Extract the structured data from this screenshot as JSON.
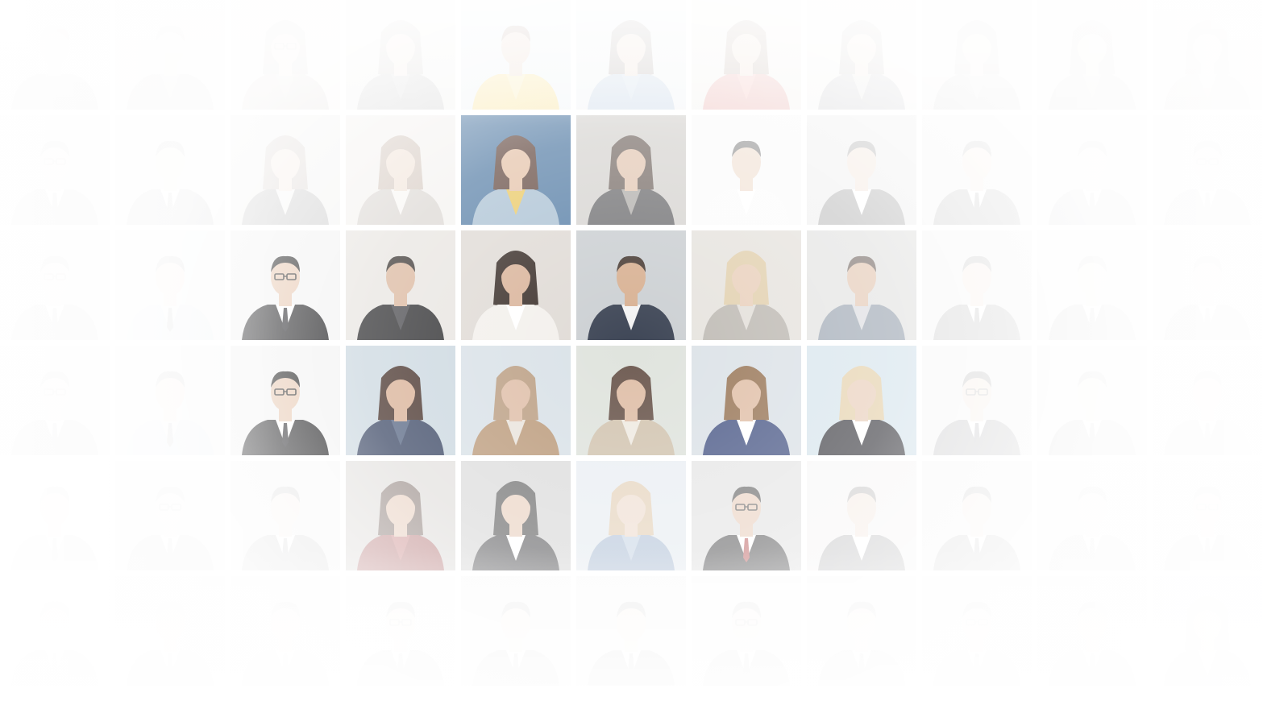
{
  "background_color": "#ffffff",
  "grid": {
    "columns": 11,
    "rows": 6
  },
  "portrait_tiles": [
    {
      "subject": "man-casual",
      "bg": "#d9d6d2",
      "top": "#1f1f24",
      "shirt": "#4b4b50",
      "skin": "#c29a80",
      "hair": "#2a2422"
    },
    {
      "subject": "man-beard-casual",
      "bg": "#d4cfcc",
      "top": "#3a3530",
      "shirt": "#6a625a",
      "skin": "#c49a7e",
      "hair": "#2a2220"
    },
    {
      "subject": "woman-glasses",
      "bg": "#e2d2bf",
      "top": "#5a4532",
      "shirt": "#7b6650",
      "skin": "#c79d80",
      "hair": "#3a2a20"
    },
    {
      "subject": "woman-hat",
      "bg": "#c6c3c0",
      "top": "#2a2a2e",
      "shirt": "#555",
      "skin": "#caa088",
      "hair": "#403028"
    },
    {
      "subject": "man-yellow-jacket",
      "bg": "#d9e3ea",
      "top": "#f2c21e",
      "shirt": "#f2d35a",
      "skin": "#d4a88a",
      "hair": "#6a3a26"
    },
    {
      "subject": "woman-street",
      "bg": "#d6e0e6",
      "top": "#5b86b6",
      "shirt": "#7aa0c6",
      "skin": "#d2a88c",
      "hair": "#3a2620"
    },
    {
      "subject": "woman-red-coat",
      "bg": "#e2ded6",
      "top": "#c8352e",
      "shirt": "#e05a4c",
      "skin": "#d9b094",
      "hair": "#6a4630"
    },
    {
      "subject": "woman-stripes",
      "bg": "#ddd8d1",
      "top": "#3c3c46",
      "shirt": "#a8a39c",
      "skin": "#cfa688",
      "hair": "#3a2a22"
    },
    {
      "subject": "woman-city",
      "bg": "#c9c6c2",
      "top": "#3a3a3c",
      "shirt": "#6a6a6e",
      "skin": "#c89e82",
      "hair": "#2e2420"
    },
    {
      "subject": "woman-bags",
      "bg": "#bdb7ae",
      "top": "#2e2a26",
      "shirt": "#7a6c5e",
      "skin": "#c69b7f",
      "hair": "#2a201c"
    },
    {
      "subject": "woman-smile",
      "bg": "#c3bcb4",
      "top": "#4a3f36",
      "shirt": "#8a7a6a",
      "skin": "#c99f84",
      "hair": "#2e221c"
    },
    {
      "subject": "man-suit-glasses",
      "bg": "#d4d4d4",
      "top": "#1c1c1e",
      "shirt": "#ffffff",
      "skin": "#e0bba2",
      "hair": "#1a1a1a"
    },
    {
      "subject": "man-suit",
      "bg": "#d6d6d6",
      "top": "#1e1e20",
      "shirt": "#ffffff",
      "skin": "#e0bba2",
      "hair": "#1a1a1a"
    },
    {
      "subject": "woman-leather",
      "bg": "#ccc9c6",
      "top": "#1a1a1a",
      "shirt": "#dedad6",
      "skin": "#d8b296",
      "hair": "#6a5040"
    },
    {
      "subject": "woman-street-walk",
      "bg": "#e2dcd4",
      "top": "#9a8e82",
      "shirt": "#efe9e1",
      "skin": "#d8b296",
      "hair": "#8a6a50"
    },
    {
      "subject": "woman-yellow-bag",
      "bg": "#3b6a98",
      "top": "#9db7cc",
      "shirt": "#e7c04a",
      "skin": "#e0b89a",
      "hair": "#4a2c22"
    },
    {
      "subject": "woman-jacket-street",
      "bg": "#c3c0bb",
      "top": "#2c2c2e",
      "shirt": "#8e8a85",
      "skin": "#d6ad90",
      "hair": "#3a2a22"
    },
    {
      "subject": "man-white-tie",
      "bg": "#f6f6f6",
      "top": "#f8f8f8",
      "shirt": "#ffffff",
      "skin": "#e3c1a8",
      "hair": "#1c1c1c"
    },
    {
      "subject": "man-blazer",
      "bg": "#d0d0d0",
      "top": "#1f1f22",
      "shirt": "#ffffff",
      "skin": "#dfbaa0",
      "hair": "#1a1a1a"
    },
    {
      "subject": "man-suit",
      "bg": "#d6d6d6",
      "top": "#222226",
      "shirt": "#ffffff",
      "skin": "#dfbaa0",
      "hair": "#1a1a1a"
    },
    {
      "subject": "man-suit",
      "bg": "#d8d8d8",
      "top": "#222226",
      "shirt": "#ffffff",
      "skin": "#dfbaa0",
      "hair": "#1a1a1a"
    },
    {
      "subject": "man-suit-glasses",
      "bg": "#dadada",
      "top": "#222226",
      "shirt": "#ffffff",
      "skin": "#dfbaa0",
      "hair": "#1a1a1a"
    },
    {
      "subject": "man-suit-glasses",
      "bg": "#d5d5d5",
      "top": "#1c1c1e",
      "shirt": "#ffffff",
      "skin": "#e0bba2",
      "hair": "#1a1a1a"
    },
    {
      "subject": "man-light-suit",
      "bg": "#d2d6da",
      "top": "#9fb4c8",
      "shirt": "#dfe6ee",
      "skin": "#d9b297",
      "hair": "#2a2a2a"
    },
    {
      "subject": "man-suit-glasses",
      "bg": "#f2f2f2",
      "top": "#121214",
      "shirt": "#ffffff",
      "skin": "#e6c4ab",
      "hair": "#0f0f0f"
    },
    {
      "subject": "man-street-phone",
      "bg": "#e6e3df",
      "top": "#1c1c1e",
      "shirt": "#3a3a3e",
      "skin": "#d8b196",
      "hair": "#2a2420"
    },
    {
      "subject": "woman-curly-smile",
      "bg": "#ddd8d2",
      "top": "#f2efea",
      "shirt": "#ffffff",
      "skin": "#d6ad92",
      "hair": "#2a1e18"
    },
    {
      "subject": "man-beard-blazer",
      "bg": "#c7cbcf",
      "top": "#2a3244",
      "shirt": "#f2f2f2",
      "skin": "#d4a988",
      "hair": "#3a2c24"
    },
    {
      "subject": "woman-blonde-coat",
      "bg": "#ddd9d2",
      "top": "#a8a29a",
      "shirt": "#d9d4cc",
      "skin": "#e2c0a4",
      "hair": "#d8bf92"
    },
    {
      "subject": "man-casual-phone",
      "bg": "#d5d5d3",
      "top": "#6b7a8c",
      "shirt": "#c9ccd0",
      "skin": "#d6ad8e",
      "hair": "#3a2a22"
    },
    {
      "subject": "man-suit",
      "bg": "#d6d6d6",
      "top": "#1f1f22",
      "shirt": "#ffffff",
      "skin": "#e0bba2",
      "hair": "#1a1a1a"
    },
    {
      "subject": "man-suit",
      "bg": "#d8d8d8",
      "top": "#1f1f22",
      "shirt": "#ffffff",
      "skin": "#e0bba2",
      "hair": "#1a1a1a"
    },
    {
      "subject": "man-suit-arms",
      "bg": "#dadada",
      "top": "#1f1f22",
      "shirt": "#ffffff",
      "skin": "#e0bba2",
      "hair": "#1a1a1a"
    },
    {
      "subject": "man-suit-glasses",
      "bg": "#d5d5d5",
      "top": "#1c1c1e",
      "shirt": "#ffffff",
      "skin": "#e0bba2",
      "hair": "#1a1a1a"
    },
    {
      "subject": "man-light-suit",
      "bg": "#d2d6da",
      "top": "#9fb4c8",
      "shirt": "#dfe6ee",
      "skin": "#d9b297",
      "hair": "#2a2a2a"
    },
    {
      "subject": "man-suit-glasses",
      "bg": "#f2f2f2",
      "top": "#121214",
      "shirt": "#ffffff",
      "skin": "#e6c4ab",
      "hair": "#0f0f0f"
    },
    {
      "subject": "woman-navy-blazer",
      "bg": "#c8d5de",
      "top": "#2e3b5a",
      "shirt": "#4a5a7a",
      "skin": "#d6ab8e",
      "hair": "#3a241c"
    },
    {
      "subject": "woman-laptop",
      "bg": "#d2dce4",
      "top": "#b08a66",
      "shirt": "#e6dfd6",
      "skin": "#dab49a",
      "hair": "#b09070"
    },
    {
      "subject": "woman-street-tablet",
      "bg": "#d8ddd5",
      "top": "#c8b8a0",
      "shirt": "#ece6dc",
      "skin": "#d8b094",
      "hair": "#4a3226"
    },
    {
      "subject": "woman-blue-blazer",
      "bg": "#d6dde4",
      "top": "#36467a",
      "shirt": "#ffffff",
      "skin": "#dcb69c",
      "hair": "#8a6440"
    },
    {
      "subject": "woman-blonde-blazer",
      "bg": "#cfe0ea",
      "top": "#1c1c22",
      "shirt": "#ffffff",
      "skin": "#e6c6ae",
      "hair": "#e0c89c"
    },
    {
      "subject": "man-suit-glasses",
      "bg": "#d6d6d6",
      "top": "#1f1f22",
      "shirt": "#ffffff",
      "skin": "#e0bba2",
      "hair": "#1a1a1a"
    },
    {
      "subject": "man-suit",
      "bg": "#d8d8d8",
      "top": "#1f1f22",
      "shirt": "#ffffff",
      "skin": "#e0bba2",
      "hair": "#1a1a1a"
    },
    {
      "subject": "man-suit-arms",
      "bg": "#dadada",
      "top": "#1f1f22",
      "shirt": "#ffffff",
      "skin": "#e0bba2",
      "hair": "#1a1a1a"
    },
    {
      "subject": "man-suit",
      "bg": "#ececec",
      "top": "#1f1f22",
      "shirt": "#ffffff",
      "skin": "#e0bba2",
      "hair": "#1a1a1a"
    },
    {
      "subject": "man-suit-glasses",
      "bg": "#d2d2d2",
      "top": "#1f1f22",
      "shirt": "#ffffff",
      "skin": "#e0bba2",
      "hair": "#1a1a1a"
    },
    {
      "subject": "man-suit",
      "bg": "#cfcfcf",
      "top": "#1f1f22",
      "shirt": "#ffffff",
      "skin": "#e0bba2",
      "hair": "#1a1a1a"
    },
    {
      "subject": "woman-red-top-smile",
      "bg": "#c7c2bd",
      "top": "#8a2a2a",
      "shirt": "#a84040",
      "skin": "#d6ab8e",
      "hair": "#3a2218"
    },
    {
      "subject": "woman-black-suit",
      "bg": "#c6c6c6",
      "top": "#1c1c1e",
      "shirt": "#ffffff",
      "skin": "#e0bba2",
      "hair": "#1a1a1a"
    },
    {
      "subject": "woman-denim",
      "bg": "#d2dbe4",
      "top": "#6f8fb6",
      "shirt": "#9ab3d0",
      "skin": "#e0bea4",
      "hair": "#c9a476"
    },
    {
      "subject": "man-suit-glasses-red-tie",
      "bg": "#d6d6d6",
      "top": "#1c1c1e",
      "shirt": "#ffffff",
      "skin": "#e0bba2",
      "hair": "#1a1a1a"
    },
    {
      "subject": "couple-office",
      "bg": "#e0dedb",
      "top": "#1f1f22",
      "shirt": "#ffffff",
      "skin": "#dcb69c",
      "hair": "#2a2220"
    },
    {
      "subject": "man-suit",
      "bg": "#d4d4d4",
      "top": "#1f1f22",
      "shirt": "#ffffff",
      "skin": "#e0bba2",
      "hair": "#1a1a1a"
    },
    {
      "subject": "man-suit",
      "bg": "#d6d6d6",
      "top": "#1f1f22",
      "shirt": "#ffffff",
      "skin": "#e0bba2",
      "hair": "#1a1a1a"
    },
    {
      "subject": "man-suit-glasses",
      "bg": "#d8d8d8",
      "top": "#1f1f22",
      "shirt": "#ffffff",
      "skin": "#e0bba2",
      "hair": "#1a1a1a"
    },
    {
      "subject": "man-suit",
      "bg": "#d4d4d4",
      "top": "#1f1f22",
      "shirt": "#ffffff",
      "skin": "#e0bba2",
      "hair": "#1a1a1a"
    },
    {
      "subject": "man-suit",
      "bg": "#d4d4d4",
      "top": "#1f1f22",
      "shirt": "#ffffff",
      "skin": "#e0bba2",
      "hair": "#1a1a1a"
    },
    {
      "subject": "man-suit",
      "bg": "#d4d4d4",
      "top": "#1f1f22",
      "shirt": "#ffffff",
      "skin": "#e0bba2",
      "hair": "#1a1a1a"
    },
    {
      "subject": "man-suit-glasses",
      "bg": "#e6e6e6",
      "top": "#1f1f22",
      "shirt": "#ffffff",
      "skin": "#e0bba2",
      "hair": "#1a1a1a"
    },
    {
      "subject": "man-suit",
      "bg": "#d0d0d0",
      "top": "#1f1f22",
      "shirt": "#ffffff",
      "skin": "#e0bba2",
      "hair": "#1a1a1a"
    },
    {
      "subject": "man-suit",
      "bg": "#cfcfcf",
      "top": "#1f1f22",
      "shirt": "#ffffff",
      "skin": "#e0bba2",
      "hair": "#1a1a1a"
    },
    {
      "subject": "man-suit-glasses",
      "bg": "#d6d6d6",
      "top": "#1f1f22",
      "shirt": "#ffffff",
      "skin": "#e0bba2",
      "hair": "#1a1a1a"
    },
    {
      "subject": "man-suit",
      "bg": "#d4d4d4",
      "top": "#1f1f22",
      "shirt": "#ffffff",
      "skin": "#e0bba2",
      "hair": "#1a1a1a"
    },
    {
      "subject": "man-suit-glasses",
      "bg": "#d6d6d6",
      "top": "#1f1f22",
      "shirt": "#ffffff",
      "skin": "#e0bba2",
      "hair": "#1a1a1a"
    },
    {
      "subject": "man-suit",
      "bg": "#d8d8d8",
      "top": "#1f1f22",
      "shirt": "#ffffff",
      "skin": "#e0bba2",
      "hair": "#1a1a1a"
    },
    {
      "subject": "woman-blazer",
      "bg": "#d4d8dc",
      "top": "#2a3040",
      "shirt": "#ffffff",
      "skin": "#dcb69c",
      "hair": "#3a2a22"
    }
  ]
}
